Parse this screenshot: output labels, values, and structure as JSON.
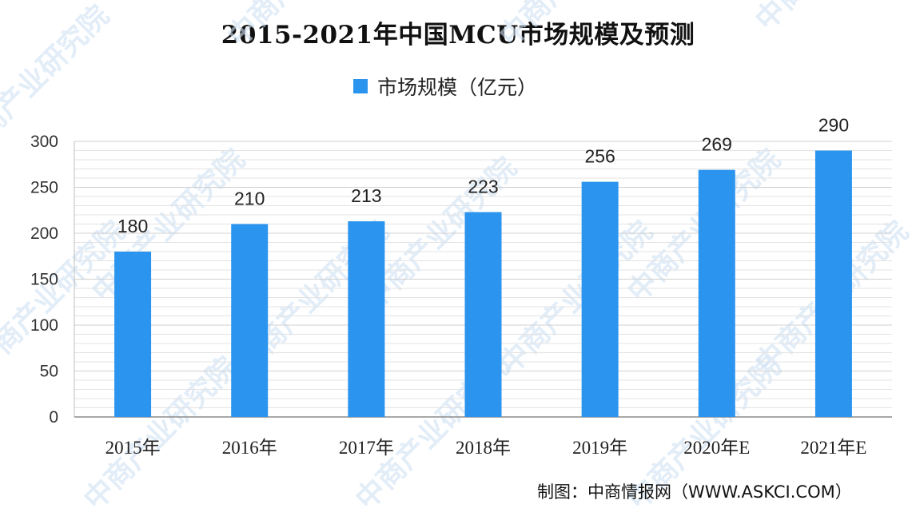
{
  "chart_data": {
    "type": "bar",
    "title": "2015-2021年中国MCU市场规模及预测",
    "categories": [
      "2015年",
      "2016年",
      "2017年",
      "2018年",
      "2019年",
      "2020年E",
      "2021年E"
    ],
    "series": [
      {
        "name": "市场规模（亿元）",
        "values": [
          180,
          210,
          213,
          223,
          256,
          269,
          290
        ],
        "color": "#2B94EE"
      }
    ],
    "ylim": [
      0,
      300
    ],
    "yticks": [
      0,
      50,
      100,
      150,
      200,
      250,
      300
    ],
    "grid": true,
    "legend_position": "top-center",
    "data_labels": true
  },
  "credit": "制图：中商情报网（WWW.ASKCI.COM）",
  "watermark": "中商产业研究院"
}
